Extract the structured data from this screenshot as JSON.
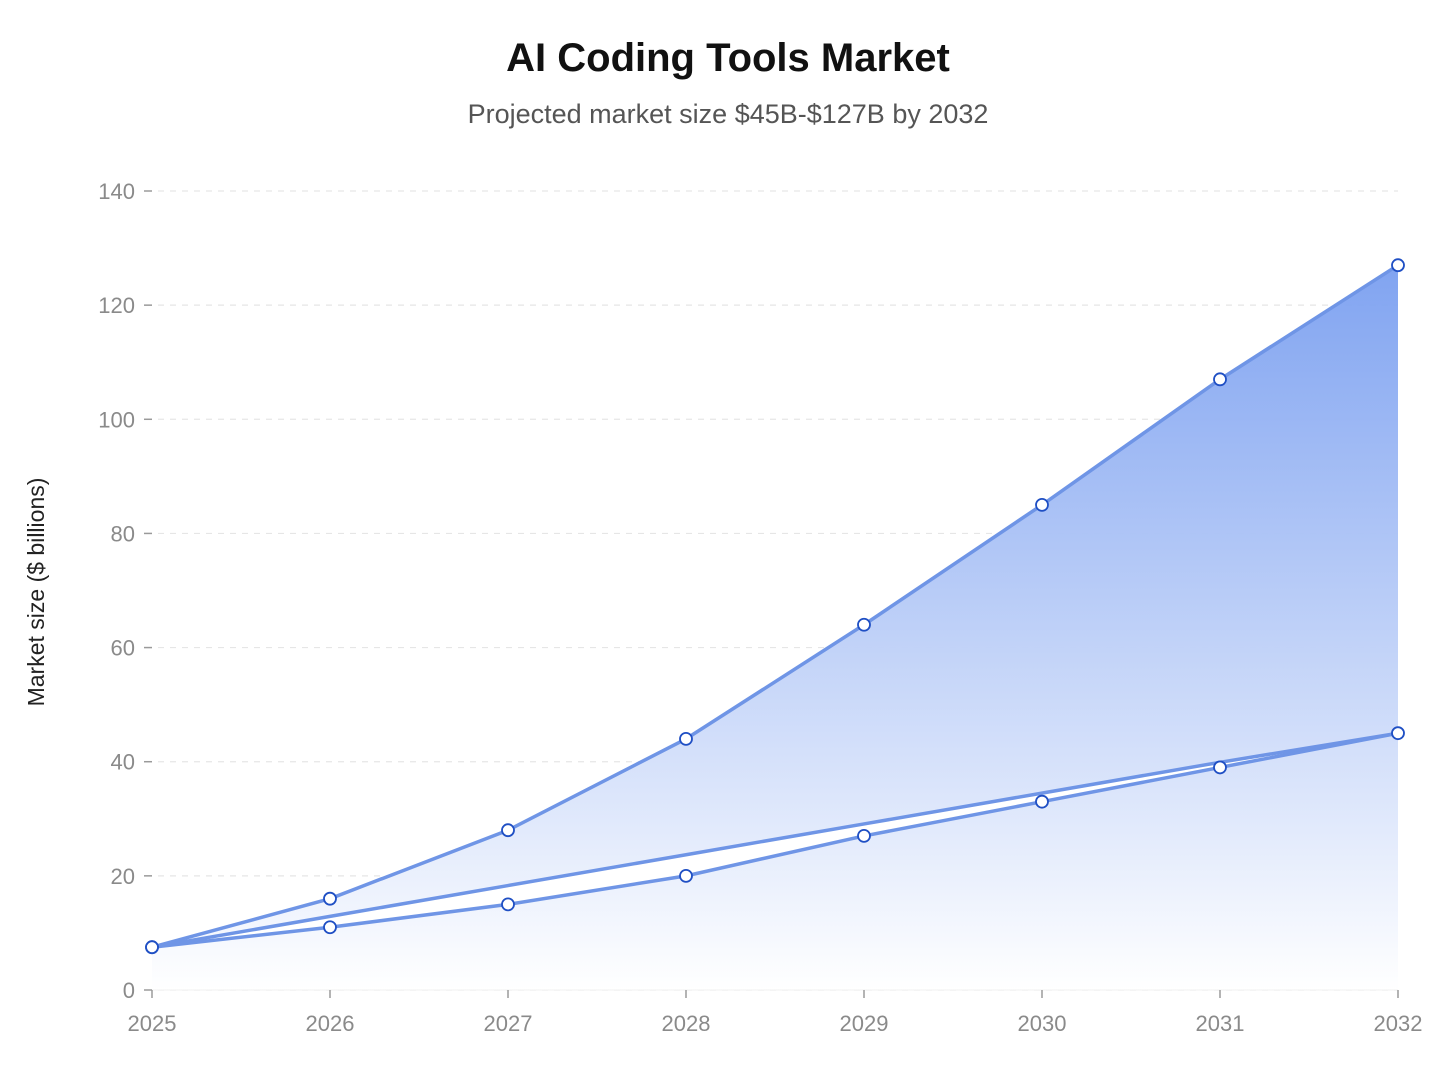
{
  "chart_data": {
    "type": "area",
    "title": "AI Coding Tools Market",
    "subtitle": "Projected market size $45B-$127B by 2032",
    "xlabel": "",
    "ylabel": "Market size ($ billions)",
    "x": [
      "2025",
      "2026",
      "2027",
      "2028",
      "2029",
      "2030",
      "2031",
      "2032"
    ],
    "ylim": [
      0,
      140
    ],
    "yticks": [
      "0",
      "20",
      "40",
      "60",
      "80",
      "100",
      "120",
      "140"
    ],
    "grid": true,
    "legend": "none",
    "series": [
      {
        "values": [
          7.5,
          16,
          28,
          44,
          64,
          85,
          107,
          127
        ]
      },
      {
        "values": [
          7.5,
          11,
          15,
          20,
          27,
          33,
          39,
          45
        ]
      },
      {
        "values": [
          7.5,
          12.9,
          18.3,
          23.7,
          29.1,
          34.5,
          39.9,
          45
        ]
      }
    ],
    "colors": {
      "line": "#6f95e6",
      "marker_stroke": "#1f4fc4",
      "marker_fill": "#ffffff",
      "fill_top": "#7a9ff0",
      "fill_bottom": "#ffffff",
      "grid": "#e6e6e6",
      "tick_text": "#8a8a8a"
    }
  }
}
